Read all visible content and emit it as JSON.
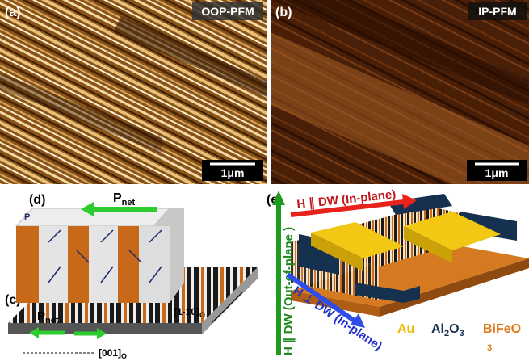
{
  "panels": {
    "a": {
      "label": "(a)",
      "mode": "OOP-PFM",
      "scale": "1μm"
    },
    "b": {
      "label": "(b)",
      "mode": "IP-PFM",
      "scale": "1μm"
    },
    "d": {
      "label": "(d)",
      "p_net": {
        "text": "P",
        "sub": "net"
      },
      "p": "P"
    },
    "c": {
      "label": "(c)",
      "p_net": {
        "text": "P",
        "sub": "net"
      },
      "axis_y": {
        "text": "[1-10]",
        "sub": "O"
      },
      "axis_x": {
        "text": "[001]",
        "sub": "O"
      }
    },
    "e": {
      "label": "(e)",
      "field_inplane": "H ∥ DW (In-plane)",
      "field_outofplane": "H ∥ DW (Out-of-plane )",
      "field_perp": "H ⊥ DW (In-plane)",
      "materials": [
        {
          "text": "Au"
        },
        {
          "text": "Al",
          "sub": "2",
          "text2": "O",
          "sub2": "3"
        },
        {
          "text": "BiFeO",
          "sub": "3"
        }
      ]
    }
  }
}
